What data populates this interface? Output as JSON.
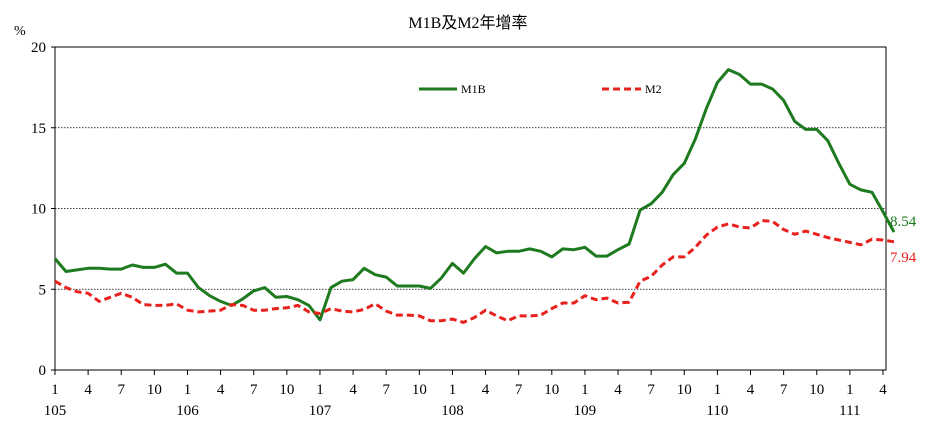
{
  "chart_data": {
    "type": "line",
    "title": "M1B及M2年增率",
    "ylabel": "%",
    "xlabel": "",
    "ylim": [
      0,
      20
    ],
    "yticks": [
      0,
      5,
      10,
      15,
      20
    ],
    "grid": "horizontal dotted",
    "legend_position": "top-center",
    "x_month_ticks": [
      "1",
      "4",
      "7",
      "10",
      "1",
      "4",
      "7",
      "10",
      "1",
      "4",
      "7",
      "10",
      "1",
      "4",
      "7",
      "10",
      "1",
      "4",
      "7",
      "10",
      "1",
      "4",
      "7",
      "10",
      "1",
      "4"
    ],
    "x_year_ticks": [
      "105",
      "106",
      "107",
      "108",
      "109",
      "110",
      "111"
    ],
    "x_start": "105-01",
    "series": [
      {
        "name": "M1B",
        "color": "#1e7a1e",
        "style": "solid",
        "end_label": "8.54",
        "values": [
          6.9,
          6.1,
          6.2,
          6.3,
          6.3,
          6.25,
          6.25,
          6.5,
          6.35,
          6.35,
          6.55,
          6.0,
          6.0,
          5.1,
          4.6,
          4.25,
          4.0,
          4.4,
          4.9,
          5.1,
          4.5,
          4.55,
          4.35,
          4.0,
          3.1,
          5.1,
          5.5,
          5.6,
          6.3,
          5.9,
          5.75,
          5.2,
          5.2,
          5.2,
          5.05,
          5.7,
          6.6,
          6.0,
          6.9,
          7.65,
          7.25,
          7.35,
          7.35,
          7.5,
          7.35,
          7.0,
          7.5,
          7.45,
          7.6,
          7.05,
          7.05,
          7.45,
          7.8,
          9.9,
          10.3,
          11.0,
          12.1,
          12.8,
          14.3,
          16.2,
          17.8,
          18.6,
          18.3,
          17.7,
          17.7,
          17.4,
          16.7,
          15.4,
          14.9,
          14.9,
          14.2,
          12.8,
          11.5,
          11.15,
          11.0,
          9.8,
          8.54
        ]
      },
      {
        "name": "M2",
        "color": "#e8211c",
        "style": "dashed",
        "end_label": "7.94",
        "values": [
          5.5,
          5.1,
          4.85,
          4.75,
          4.25,
          4.5,
          4.75,
          4.5,
          4.05,
          4.0,
          4.0,
          4.1,
          3.7,
          3.6,
          3.65,
          3.7,
          4.05,
          4.0,
          3.7,
          3.7,
          3.8,
          3.85,
          4.0,
          3.6,
          3.5,
          3.8,
          3.65,
          3.6,
          3.75,
          4.1,
          3.65,
          3.4,
          3.4,
          3.35,
          3.05,
          3.05,
          3.15,
          2.95,
          3.25,
          3.7,
          3.35,
          3.05,
          3.35,
          3.35,
          3.4,
          3.8,
          4.15,
          4.15,
          4.6,
          4.35,
          4.45,
          4.15,
          4.2,
          5.5,
          5.8,
          6.5,
          7.0,
          7.0,
          7.6,
          8.35,
          8.85,
          9.05,
          8.85,
          8.8,
          9.25,
          9.2,
          8.7,
          8.4,
          8.6,
          8.4,
          8.2,
          8.05,
          7.9,
          7.75,
          8.1,
          8.05,
          7.94
        ]
      }
    ]
  }
}
